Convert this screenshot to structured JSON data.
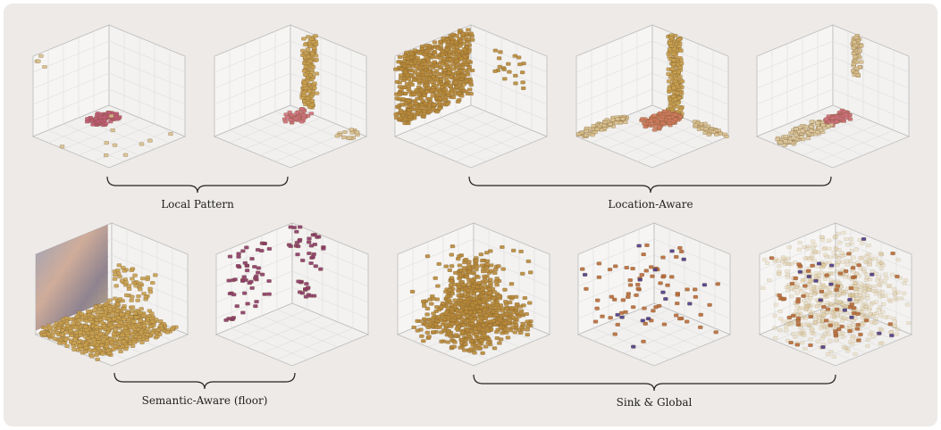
{
  "groups": [
    {
      "label": "Local Pattern"
    },
    {
      "label": "Location-Aware"
    },
    {
      "label": "Semantic-Aware (floor)"
    },
    {
      "label": "Sink & Global"
    }
  ]
}
